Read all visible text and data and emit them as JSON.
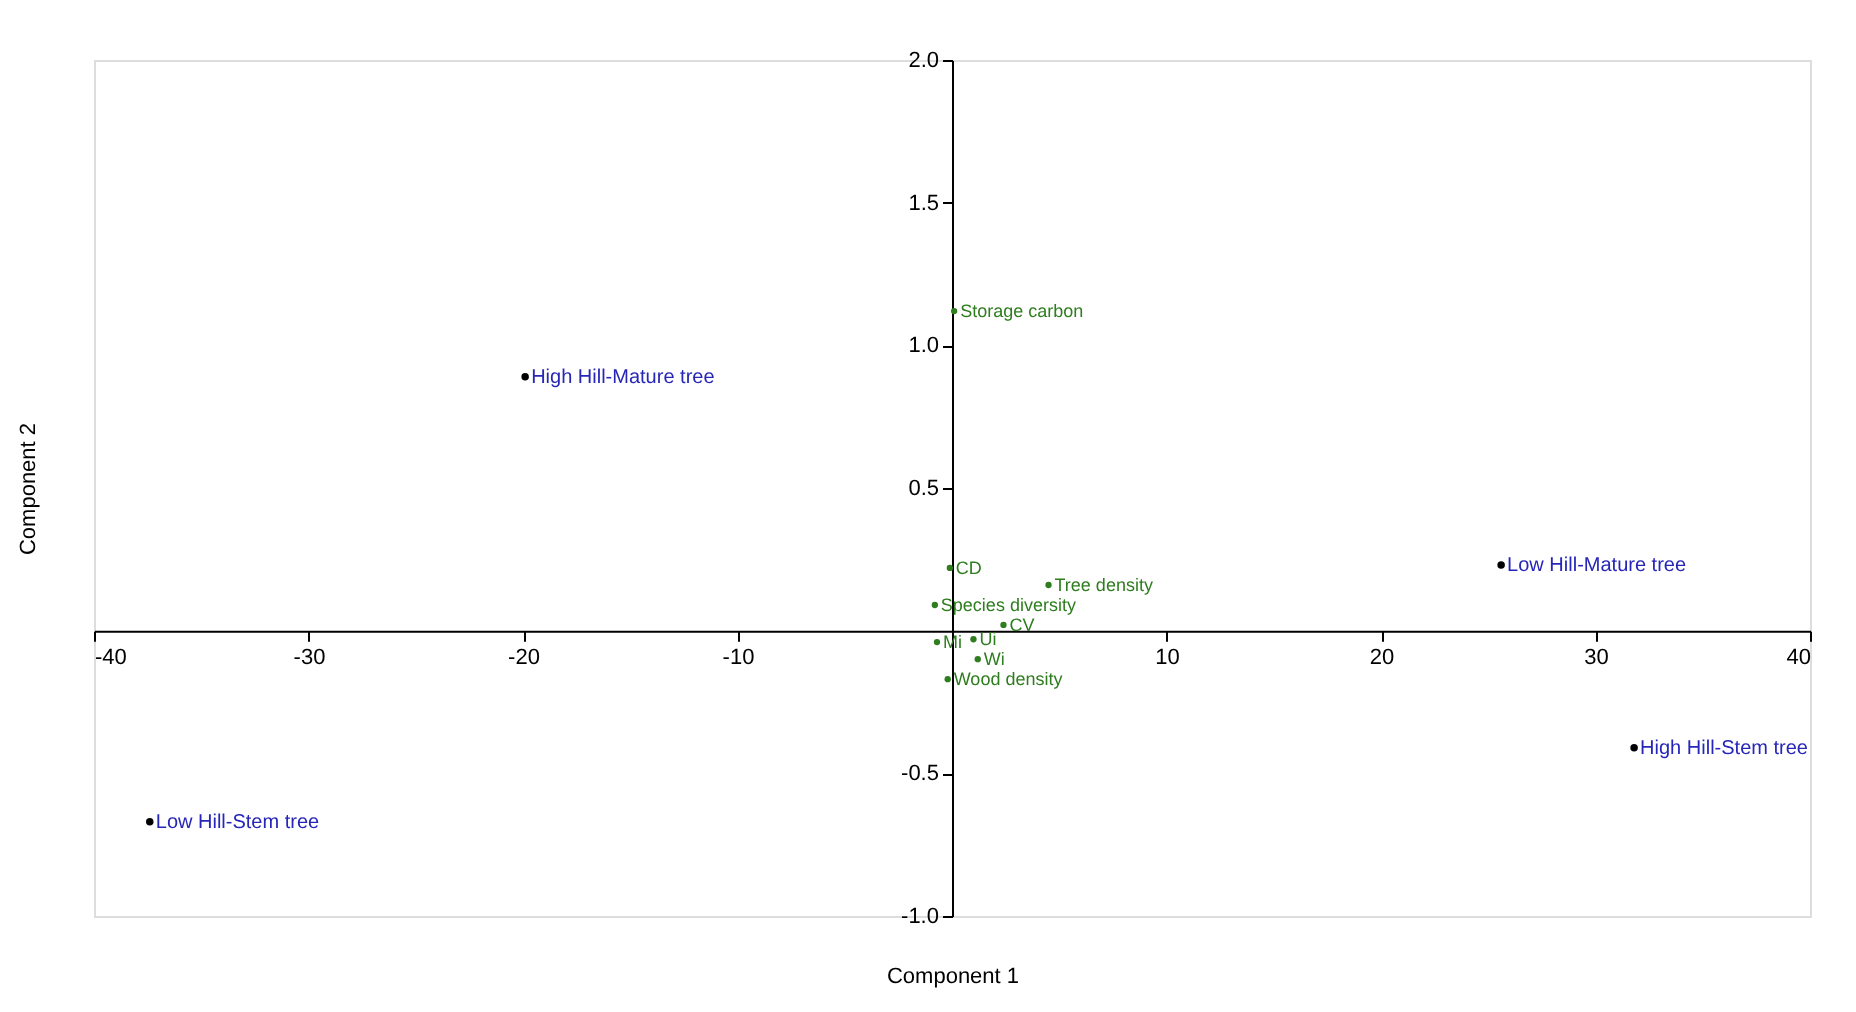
{
  "chart_data": {
    "type": "scatter",
    "xlabel": "Component 1",
    "ylabel": "Component 2",
    "xlim": [
      -40,
      40
    ],
    "xticks": [
      -40,
      -30,
      -20,
      -10,
      10,
      20,
      30,
      40
    ],
    "ylim": [
      -1.0,
      2.0
    ],
    "yticks": [
      {
        "value": -1.0,
        "label": "-1.0"
      },
      {
        "value": -0.5,
        "label": "-0.5"
      },
      0.5,
      {
        "value": 1.0,
        "label": "1.0"
      },
      1.5,
      {
        "value": 2.0,
        "label": "2.0"
      }
    ],
    "grid": false,
    "legend": false,
    "series": [
      {
        "color": "#000000",
        "marker": "circle",
        "x": [
          -19.9,
          25.6,
          31.8,
          -37.4
        ],
        "values": [
          0.89,
          0.23,
          -0.41,
          -0.67
        ],
        "value_labels": [
          "High Hill-Mature tree",
          "Low Hill-Mature tree",
          "High Hill-Stem tree",
          "Low Hill-Stem tree"
        ]
      },
      {
        "color": "#2e7d1e",
        "marker": "circle",
        "x": [
          0.1,
          -0.1,
          -0.8,
          4.5,
          2.4,
          1.0,
          -0.7,
          1.2,
          -0.2
        ],
        "values": [
          1.12,
          0.22,
          0.09,
          0.16,
          0.02,
          -0.03,
          -0.04,
          -0.1,
          -0.17
        ],
        "value_labels": [
          "Storage carbon",
          "CD",
          "Species diversity",
          "Tree density",
          "CV",
          "Ui",
          "Mi",
          "Wi",
          "Wood density"
        ]
      }
    ]
  }
}
